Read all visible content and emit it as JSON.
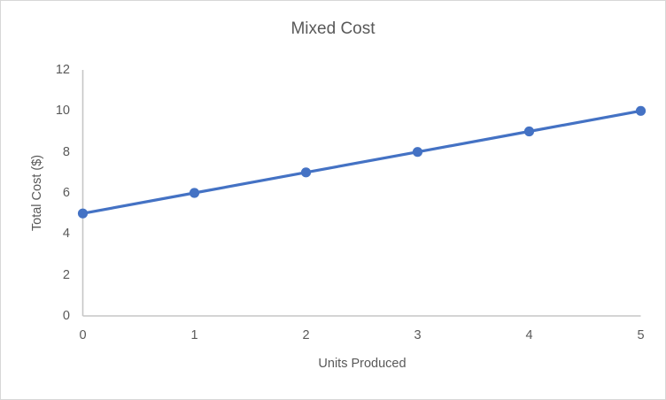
{
  "chart_data": {
    "type": "line",
    "title": "Mixed Cost",
    "xlabel": "Units Produced",
    "ylabel": "Total Cost ($)",
    "x": [
      0,
      1,
      2,
      3,
      4,
      5
    ],
    "series": [
      {
        "values": [
          5,
          6,
          7,
          8,
          9,
          10
        ],
        "color": "#4472C4",
        "marker": "circle"
      }
    ],
    "xticks": [
      0,
      1,
      2,
      3,
      4,
      5
    ],
    "yticks": [
      0,
      2,
      4,
      6,
      8,
      10,
      12
    ],
    "xlim": [
      0,
      5
    ],
    "ylim": [
      0,
      12
    ],
    "grid": false,
    "legend": "none",
    "colors": {
      "line": "#4472C4",
      "marker": "#4472C4",
      "text": "#595959",
      "axis_line": "#c6c6c6",
      "frame_border": "#d7d7d7",
      "background": "#ffffff"
    }
  }
}
